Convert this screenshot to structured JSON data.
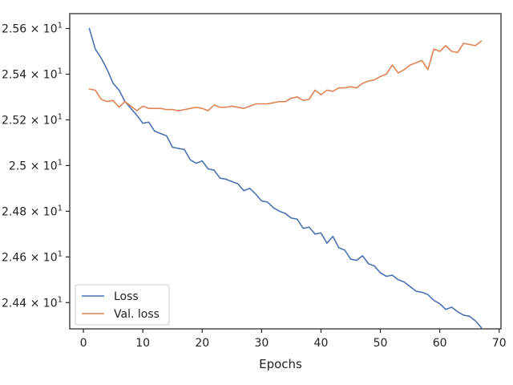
{
  "chart_data": {
    "type": "line",
    "title": "",
    "xlabel": "Epochs",
    "ylabel": "",
    "xlim": [
      -2.3,
      70.3
    ],
    "ylim": [
      24.285,
      25.665
    ],
    "x_ticks": [
      0,
      10,
      20,
      30,
      40,
      50,
      60,
      70
    ],
    "x_tick_labels": [
      "0",
      "10",
      "20",
      "30",
      "40",
      "50",
      "60",
      "70"
    ],
    "y_ticks": [
      24.4,
      24.6,
      24.8,
      25.0,
      25.2,
      25.4,
      25.6
    ],
    "y_tick_labels": [
      {
        "mantissa": "2.44",
        "base": "10",
        "exp": "1"
      },
      {
        "mantissa": "2.46",
        "base": "10",
        "exp": "1"
      },
      {
        "mantissa": "2.48",
        "base": "10",
        "exp": "1"
      },
      {
        "mantissa": "2.5",
        "base": "10",
        "exp": "1"
      },
      {
        "mantissa": "2.52",
        "base": "10",
        "exp": "1"
      },
      {
        "mantissa": "2.54",
        "base": "10",
        "exp": "1"
      },
      {
        "mantissa": "2.56",
        "base": "10",
        "exp": "1"
      }
    ],
    "grid": false,
    "legend": "lower-left",
    "x": [
      1,
      2,
      3,
      4,
      5,
      6,
      7,
      8,
      9,
      10,
      11,
      12,
      13,
      14,
      15,
      16,
      17,
      18,
      19,
      20,
      21,
      22,
      23,
      24,
      25,
      26,
      27,
      28,
      29,
      30,
      31,
      32,
      33,
      34,
      35,
      36,
      37,
      38,
      39,
      40,
      41,
      42,
      43,
      44,
      45,
      46,
      47,
      48,
      49,
      50,
      51,
      52,
      53,
      54,
      55,
      56,
      57,
      58,
      59,
      60,
      61,
      62,
      63,
      64,
      65,
      66,
      67
    ],
    "series": [
      {
        "name": "Loss",
        "color": "#4c72b0",
        "values": [
          25.6,
          25.51,
          25.47,
          25.42,
          25.36,
          25.33,
          25.28,
          25.25,
          25.22,
          25.185,
          25.19,
          25.15,
          25.14,
          25.13,
          25.08,
          25.075,
          25.07,
          25.025,
          25.01,
          25.02,
          24.985,
          24.98,
          24.945,
          24.94,
          24.93,
          24.92,
          24.89,
          24.9,
          24.875,
          24.845,
          24.84,
          24.815,
          24.8,
          24.79,
          24.77,
          24.765,
          24.725,
          24.73,
          24.7,
          24.705,
          24.66,
          24.69,
          24.64,
          24.63,
          24.59,
          24.585,
          24.605,
          24.57,
          24.56,
          24.53,
          24.515,
          24.52,
          24.5,
          24.49,
          24.47,
          24.45,
          24.445,
          24.435,
          24.41,
          24.395,
          24.37,
          24.38,
          24.36,
          24.345,
          24.34,
          24.32,
          24.29
        ]
      },
      {
        "name": "Val. loss",
        "color": "#dd8452",
        "values": [
          25.335,
          25.33,
          25.29,
          25.28,
          25.285,
          25.255,
          25.28,
          25.26,
          25.24,
          25.26,
          25.25,
          25.25,
          25.25,
          25.245,
          25.245,
          25.24,
          25.245,
          25.25,
          25.255,
          25.25,
          25.24,
          25.265,
          25.255,
          25.255,
          25.26,
          25.255,
          25.25,
          25.26,
          25.27,
          25.27,
          25.27,
          25.275,
          25.28,
          25.28,
          25.295,
          25.3,
          25.285,
          25.29,
          25.33,
          25.31,
          25.33,
          25.325,
          25.34,
          25.34,
          25.345,
          25.34,
          25.36,
          25.37,
          25.375,
          25.39,
          25.4,
          25.44,
          25.405,
          25.42,
          25.44,
          25.45,
          25.46,
          25.42,
          25.51,
          25.5,
          25.525,
          25.5,
          25.495,
          25.535,
          25.53,
          25.525,
          25.545
        ]
      }
    ]
  }
}
